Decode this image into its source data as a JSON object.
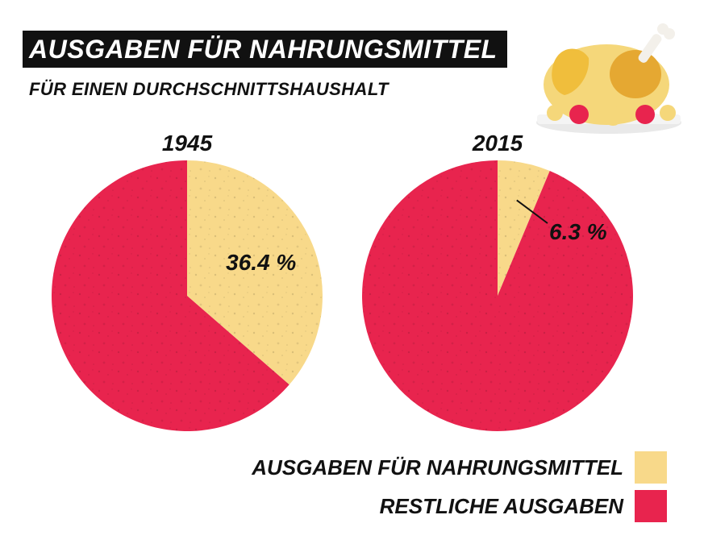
{
  "header": {
    "title": "AUSGABEN FÜR NAHRUNGSMITTEL",
    "subtitle": "FÜR EINEN DURCHSCHNITTSHAUSHALT"
  },
  "colors": {
    "food": "#F8D98A",
    "rest": "#E8244E",
    "text": "#111111"
  },
  "decoration": {
    "icon": "roast-chicken-icon"
  },
  "chart_data": [
    {
      "type": "pie",
      "title": "1945",
      "slices": [
        {
          "label": "AUSGABEN FÜR NAHRUNGSMITTEL",
          "value": 36.4,
          "display": "36.4 %"
        },
        {
          "label": "RESTLICHE AUSGABEN",
          "value": 63.6
        }
      ]
    },
    {
      "type": "pie",
      "title": "2015",
      "slices": [
        {
          "label": "AUSGABEN FÜR NAHRUNGSMITTEL",
          "value": 6.3,
          "display": "6.3 %"
        },
        {
          "label": "RESTLICHE AUSGABEN",
          "value": 93.7
        }
      ]
    }
  ],
  "legend": {
    "position": "bottom-right",
    "items": [
      {
        "label": "AUSGABEN FÜR NAHRUNGSMITTEL"
      },
      {
        "label": "RESTLICHE AUSGABEN"
      }
    ]
  }
}
